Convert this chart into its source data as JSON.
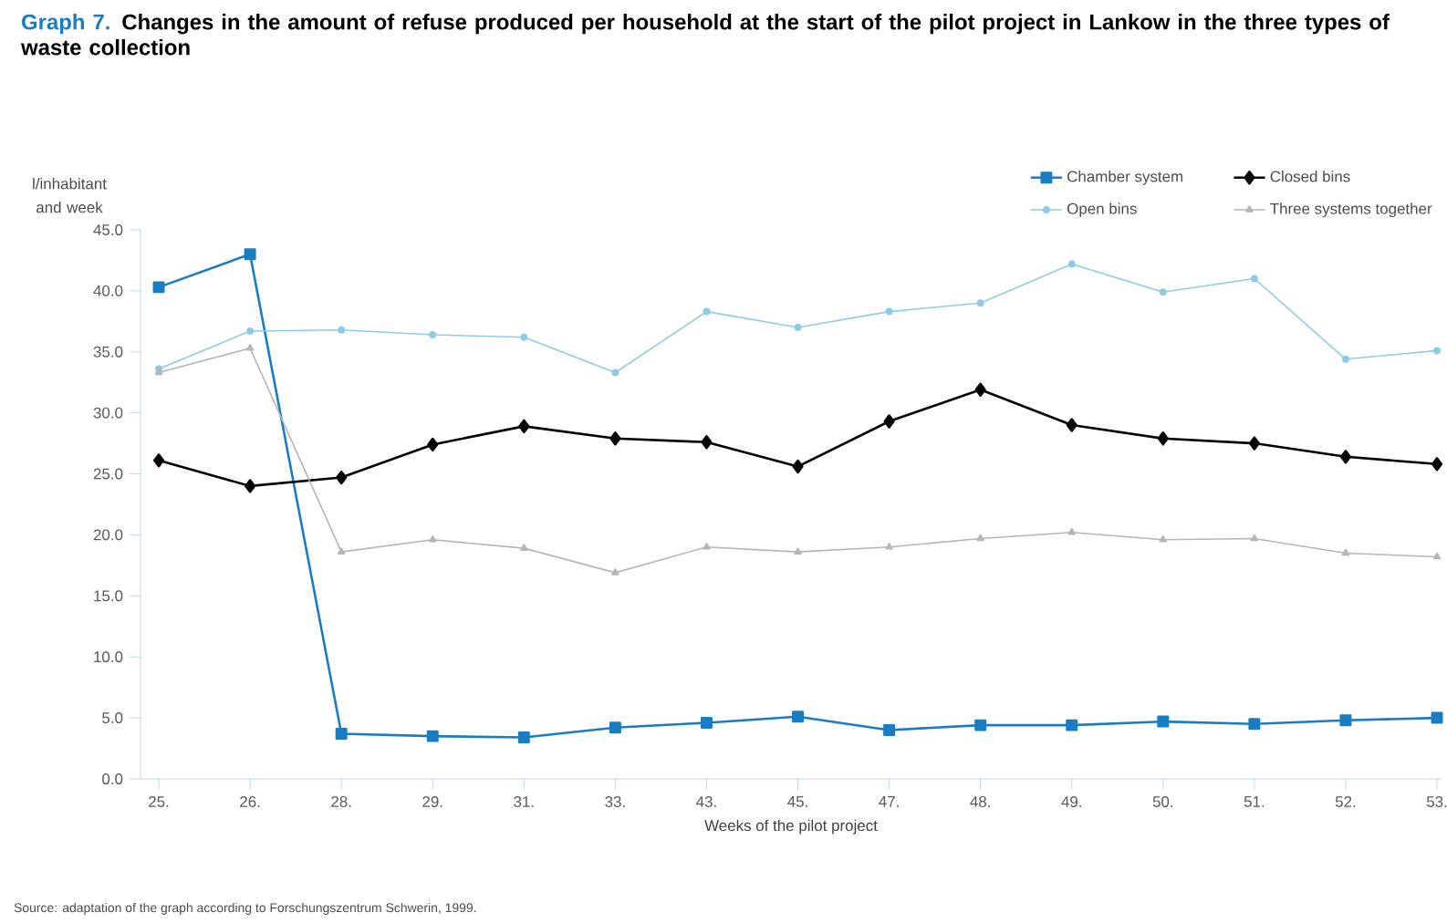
{
  "chart_data": {
    "type": "line",
    "title": "Graph 7.",
    "subtitle": "Changes in the amount of refuse produced per household at the start of the pilot project in Lankow in the three types of waste collection",
    "ylabel": "l/inhabitant and week",
    "xlabel": "Weeks of the pilot project",
    "annotations": [
      "Source: adaptation of the graph according to Forschungszentrum Schwerin, 1999."
    ],
    "categories": [
      "25.",
      "26.",
      "28.",
      "29.",
      "31.",
      "33.",
      "43.",
      "45.",
      "47.",
      "48.",
      "49.",
      "50.",
      "51.",
      "52.",
      "53."
    ],
    "series": [
      {
        "name": "Chamber system",
        "color": "#1a7cc1",
        "marker": "square",
        "values": [
          40.3,
          43.0,
          3.7,
          3.5,
          3.4,
          4.2,
          4.6,
          5.1,
          4.0,
          4.4,
          4.4,
          4.7,
          4.5,
          4.8,
          5.0
        ]
      },
      {
        "name": "Closed bins",
        "color": "#000000",
        "marker": "diamond",
        "values": [
          26.1,
          24.0,
          24.7,
          27.4,
          28.9,
          27.9,
          27.6,
          25.6,
          29.3,
          31.9,
          29.0,
          27.9,
          27.5,
          26.4,
          25.8
        ]
      },
      {
        "name": "Open bins",
        "color": "#8fcbe6",
        "marker": "circle",
        "values": [
          33.6,
          36.7,
          36.8,
          36.4,
          36.2,
          33.3,
          38.3,
          37.0,
          38.3,
          39.0,
          42.2,
          39.9,
          41.0,
          34.4,
          35.1
        ]
      },
      {
        "name": "Three systems together",
        "color": "#b5b5b5",
        "marker": "triangle",
        "values": [
          33.3,
          35.3,
          18.6,
          19.6,
          18.9,
          16.9,
          19.0,
          18.6,
          19.0,
          19.7,
          20.2,
          19.6,
          19.7,
          18.5,
          18.2
        ]
      }
    ],
    "ylim": [
      0,
      45
    ],
    "yticks": [
      {
        "value": 0,
        "label": "0.0"
      },
      {
        "value": 5,
        "label": "5.0"
      },
      {
        "value": 10,
        "label": "10.0"
      },
      {
        "value": 15,
        "label": "15.0"
      },
      {
        "value": 20,
        "label": "20.0"
      },
      {
        "value": 25,
        "label": "25.0"
      },
      {
        "value": 30,
        "label": "30.0"
      },
      {
        "value": 35,
        "label": "35.0"
      },
      {
        "value": 40,
        "label": "40.0"
      },
      {
        "value": 45,
        "label": "45.0"
      }
    ],
    "grid": false,
    "legend": "top right",
    "line_style": "solid"
  }
}
